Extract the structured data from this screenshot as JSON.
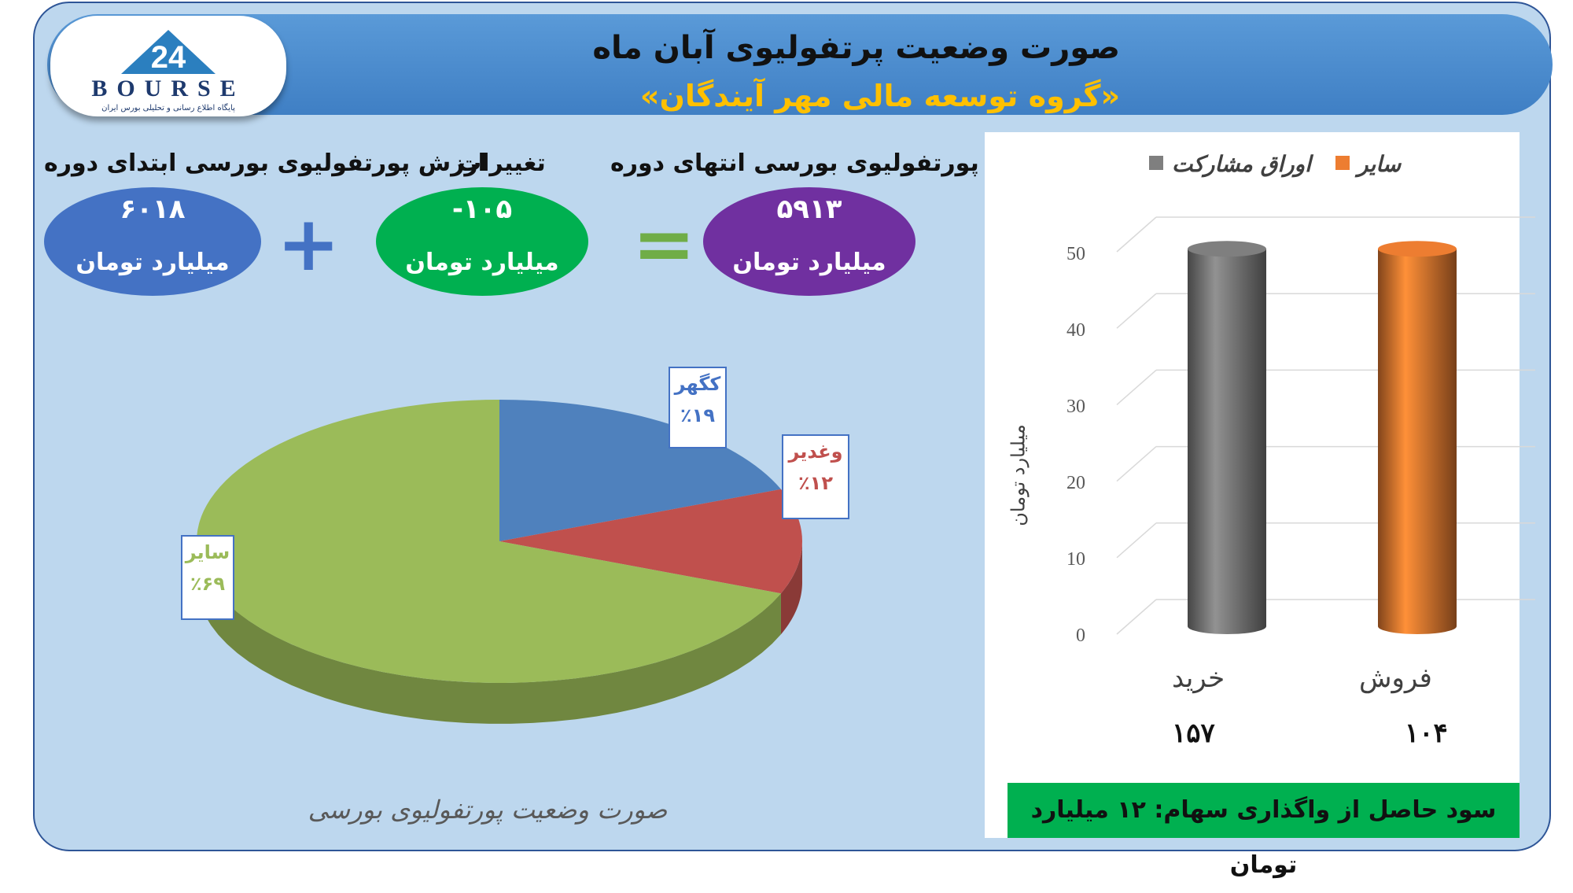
{
  "header": {
    "title": "صورت وضعیت پرتفولیوی آبان ماه",
    "subtitle": "«گروه توسعه مالی مهر آیندگان»",
    "logo_text": "BOURSE",
    "logo_number": "24",
    "logo_tagline": "پایگاه اطلاع رسانی و تحلیلی بورس ایران"
  },
  "summary": {
    "start": {
      "label": "ارزش پورتفولیوی بورسی ابتدای دوره",
      "value": "۶۰۱۸",
      "unit": "میلیارد تومان",
      "color": "#4472c4"
    },
    "change": {
      "label": "تغییرات",
      "value": "-۱۰۵",
      "unit": "میلیارد تومان",
      "color": "#00b050"
    },
    "end": {
      "label": "ارزش پورتفولیوی بورسی انتهای دوره",
      "value": "۵۹۱۳",
      "unit": "میلیارد تومان",
      "color": "#7030a0"
    },
    "plus_symbol": "+",
    "equals_symbol": "="
  },
  "chart_data": [
    {
      "type": "pie",
      "title": "صورت وضعیت پورتفولیوی بورسی",
      "slices": [
        {
          "label": "کگهر",
          "value_label": "٪۱۹",
          "value": 19,
          "color": "#4f81bd"
        },
        {
          "label": "وغدیر",
          "value_label": "٪۱۲",
          "value": 12,
          "color": "#c0504d"
        },
        {
          "label": "سایر",
          "value_label": "٪۶۹",
          "value": 69,
          "color": "#9bbb59"
        }
      ]
    },
    {
      "type": "bar",
      "categories": [
        "خرید",
        "فروش"
      ],
      "category_values": [
        "۱۵۷",
        "۱۰۴"
      ],
      "series": [
        {
          "name": "اوراق مشارکت",
          "values": [
            51,
            null
          ],
          "color": "#7f7f7f"
        },
        {
          "name": "سایر",
          "values": [
            null,
            51
          ],
          "color": "#ed7d31"
        }
      ],
      "ylabel": "میلیارد تومان",
      "ylim": [
        0,
        50
      ],
      "yticks": [
        "0",
        "10",
        "20",
        "30",
        "40",
        "50"
      ],
      "grid": true,
      "legend": "top"
    }
  ],
  "footer": {
    "profit_text": "سود حاصل از واگذاری سهام: ۱۲ میلیارد تومان"
  }
}
